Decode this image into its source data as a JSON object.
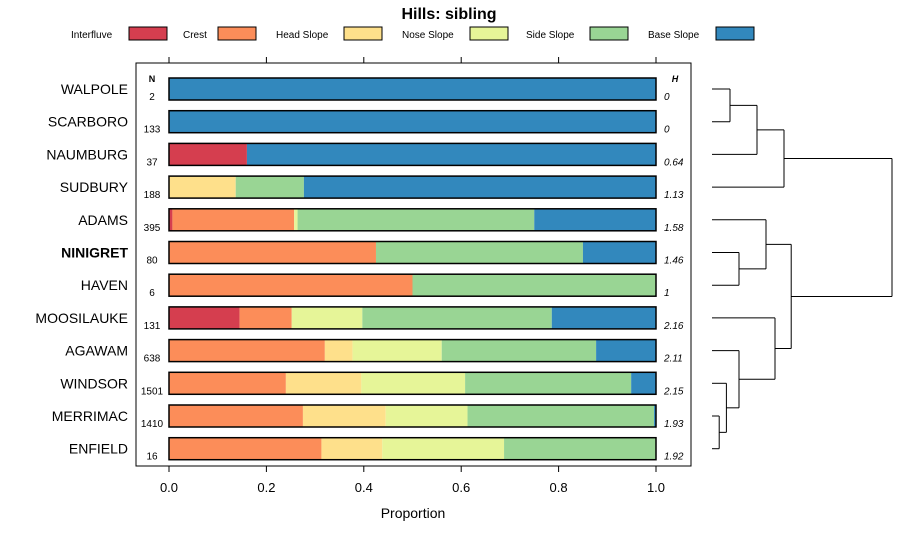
{
  "chart_data": {
    "type": "bar",
    "orientation": "horizontal",
    "stacked": true,
    "title": "Hills: sibling",
    "xlabel": "Proportion",
    "xlim": [
      0,
      1
    ],
    "xticks": [
      "0.0",
      "0.2",
      "0.4",
      "0.6",
      "0.8",
      "1.0"
    ],
    "n_header": "N",
    "h_header": "H",
    "legend": [
      {
        "name": "Interfluve",
        "color": "#d53e4f"
      },
      {
        "name": "Crest",
        "color": "#fc8d59"
      },
      {
        "name": "Head Slope",
        "color": "#fee08b"
      },
      {
        "name": "Nose Slope",
        "color": "#e6f598"
      },
      {
        "name": "Side Slope",
        "color": "#99d594"
      },
      {
        "name": "Base Slope",
        "color": "#3288bd"
      }
    ],
    "rows": [
      {
        "label": "WALPOLE",
        "n": "2",
        "h": "0",
        "bold": false,
        "values": [
          0,
          0,
          0,
          0,
          0,
          1.0
        ]
      },
      {
        "label": "SCARBORO",
        "n": "133",
        "h": "0",
        "bold": false,
        "values": [
          0,
          0,
          0,
          0,
          0,
          1.0
        ]
      },
      {
        "label": "NAUMBURG",
        "n": "37",
        "h": "0.64",
        "bold": false,
        "values": [
          0.16,
          0,
          0,
          0,
          0,
          0.84
        ]
      },
      {
        "label": "SUDBURY",
        "n": "188",
        "h": "1.13",
        "bold": false,
        "values": [
          0,
          0,
          0.137,
          0,
          0.14,
          0.723
        ]
      },
      {
        "label": "ADAMS",
        "n": "395",
        "h": "1.58",
        "bold": false,
        "values": [
          0.007,
          0.25,
          0,
          0.007,
          0.486,
          0.25
        ]
      },
      {
        "label": "NINIGRET",
        "n": "80",
        "h": "1.46",
        "bold": true,
        "values": [
          0,
          0.425,
          0,
          0,
          0.425,
          0.15
        ]
      },
      {
        "label": "HAVEN",
        "n": "6",
        "h": "1",
        "bold": false,
        "values": [
          0,
          0.5,
          0,
          0,
          0.5,
          0
        ]
      },
      {
        "label": "MOOSILAUKE",
        "n": "131",
        "h": "2.16",
        "bold": false,
        "values": [
          0.145,
          0.107,
          0,
          0.145,
          0.389,
          0.214
        ]
      },
      {
        "label": "AGAWAM",
        "n": "638",
        "h": "2.11",
        "bold": false,
        "values": [
          0,
          0.32,
          0.057,
          0.183,
          0.317,
          0.123
        ]
      },
      {
        "label": "WINDSOR",
        "n": "1501",
        "h": "2.15",
        "bold": false,
        "values": [
          0,
          0.24,
          0.155,
          0.213,
          0.341,
          0.051
        ]
      },
      {
        "label": "MERRIMAC",
        "n": "1410",
        "h": "1.93",
        "bold": false,
        "values": [
          0,
          0.275,
          0.17,
          0.168,
          0.383,
          0.004
        ]
      },
      {
        "label": "ENFIELD",
        "n": "16",
        "h": "1.92",
        "bold": false,
        "values": [
          0,
          0.313,
          0.125,
          0.25,
          0.312,
          0
        ]
      }
    ],
    "dendrogram": {
      "leaf_order": [
        "WALPOLE",
        "SCARBORO",
        "NAUMBURG",
        "SUDBURY",
        "ADAMS",
        "NINIGRET",
        "HAVEN",
        "MOOSILAUKE",
        "AGAWAM",
        "WINDSOR",
        "MERRIMAC",
        "ENFIELD"
      ],
      "merges": [
        {
          "a": 10,
          "b": 11,
          "height": 0.04
        },
        {
          "a": 9,
          "b": -1,
          "height": 0.08
        },
        {
          "a": 8,
          "b": -2,
          "height": 0.15
        },
        {
          "a": 0,
          "b": 1,
          "height": 0.1
        },
        {
          "a": -4,
          "b": 2,
          "height": 0.25
        },
        {
          "a": -5,
          "b": 3,
          "height": 0.4
        },
        {
          "a": 5,
          "b": 6,
          "height": 0.15
        },
        {
          "a": 4,
          "b": -7,
          "height": 0.3
        },
        {
          "a": 7,
          "b": -3,
          "height": 0.35
        },
        {
          "a": -8,
          "b": -9,
          "height": 0.44
        },
        {
          "a": -6,
          "b": -10,
          "height": 1.0
        }
      ]
    }
  }
}
